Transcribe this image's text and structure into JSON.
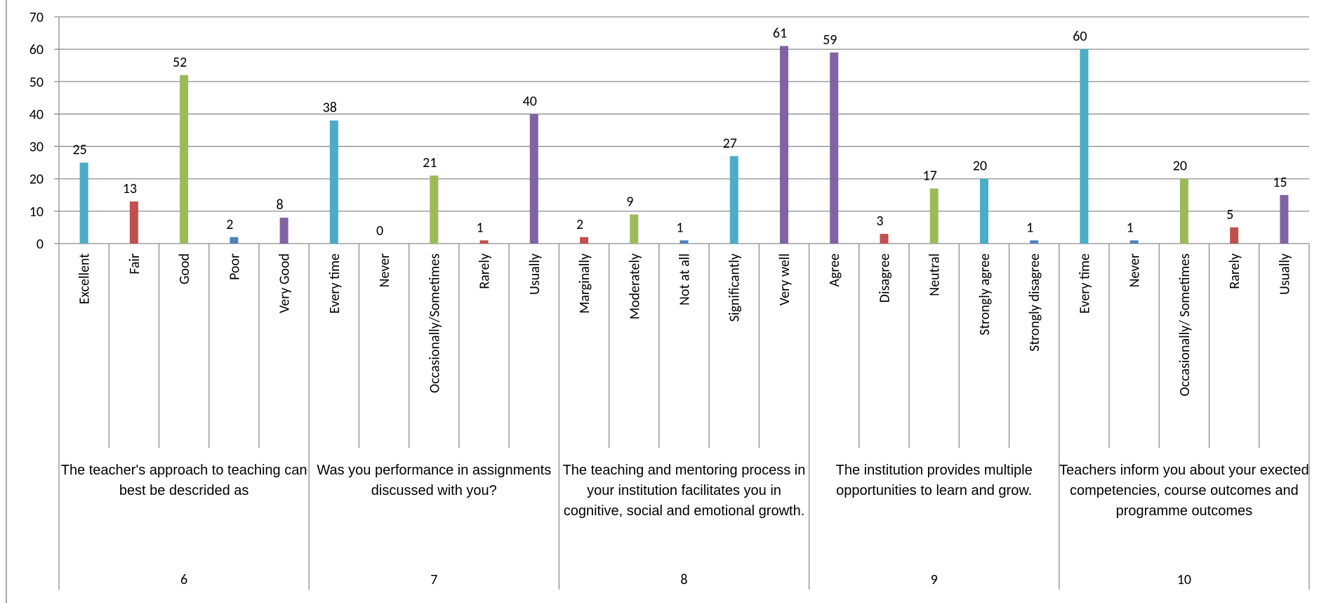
{
  "chart_data": {
    "type": "bar",
    "categories": [
      "Excellent",
      "Fair",
      "Good",
      "Poor",
      "Very Good",
      "Every time",
      "Never",
      "Occasionally/Sometimes",
      "Rarely",
      "Usually",
      "Marginally",
      "Moderately",
      "Not at all",
      "Significantly",
      "Very well",
      "Agree",
      "Disagree",
      "Neutral",
      "Strongly agree",
      "Strongly disagree",
      "Every time",
      "Never",
      "Occasionally/ Sometimes",
      "Rarely",
      "Usually"
    ],
    "values": [
      25,
      13,
      52,
      2,
      8,
      38,
      0,
      21,
      1,
      40,
      2,
      9,
      1,
      27,
      61,
      59,
      3,
      17,
      20,
      1,
      60,
      1,
      20,
      5,
      15
    ],
    "colors": [
      "#4bacc6",
      "#c0504d",
      "#9bbb59",
      "#4f81bd",
      "#8064a2",
      "#4bacc6",
      "#4f81bd",
      "#9bbb59",
      "#c0504d",
      "#8064a2",
      "#c0504d",
      "#9bbb59",
      "#4f81bd",
      "#4bacc6",
      "#8064a2",
      "#8064a2",
      "#c0504d",
      "#9bbb59",
      "#4bacc6",
      "#4f81bd",
      "#4bacc6",
      "#4f81bd",
      "#9bbb59",
      "#c0504d",
      "#8064a2"
    ],
    "groups": [
      {
        "name": "The teacher's approach to teaching can best be descrided as",
        "id": "6"
      },
      {
        "name": "Was you performance in assignments discussed with you?",
        "id": "7"
      },
      {
        "name": "The teaching and mentoring process in your institution facilitates you in cognitive, social and emotional growth.",
        "id": "8"
      },
      {
        "name": "The institution provides multiple opportunities to learn and grow.",
        "id": "9"
      },
      {
        "name": "Teachers inform you about your exected competencies, course outcomes and programme outcomes",
        "id": "10"
      }
    ],
    "ylim": [
      0,
      70
    ],
    "yticks": [
      0,
      10,
      20,
      30,
      40,
      50,
      60,
      70
    ],
    "grid": true
  }
}
